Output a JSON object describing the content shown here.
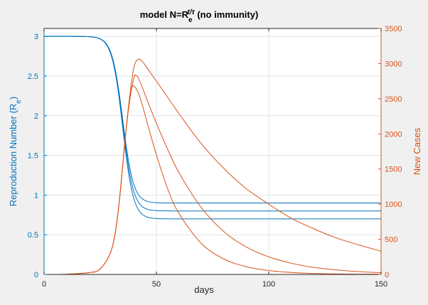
{
  "chart_data": {
    "type": "line",
    "title": "model N=R_e^{t/τ} (no immunity)",
    "title_parts": {
      "prefix": "model N=R",
      "sub": "e",
      "sup": "t/τ",
      "suffix": " (no immunity)"
    },
    "xlabel": "days",
    "ylabel_left": "Reproduction Number (R",
    "ylabel_left_sub": "e",
    "ylabel_left_close": ")",
    "ylabel_right": "New Cases",
    "xlim": [
      0,
      150
    ],
    "ylim_left": [
      0,
      3.1
    ],
    "ylim_right": [
      0,
      3500
    ],
    "xticks": [
      "0",
      "50",
      "100",
      "150"
    ],
    "yticks_left": [
      "0",
      "0.5",
      "1",
      "1.5",
      "2",
      "2.5",
      "3"
    ],
    "yticks_right": [
      "0",
      "500",
      "1000",
      "1500",
      "2000",
      "2500",
      "3000",
      "3500"
    ],
    "grid": true,
    "colors": {
      "left": "#0072bd",
      "right": "#d95319",
      "grid": "#dfe3e8"
    },
    "reproduction_series": [
      {
        "R_start": 3.0,
        "R_end": 0.9,
        "midpoint_day": 35,
        "steepness": 0.42
      },
      {
        "R_start": 3.0,
        "R_end": 0.8,
        "midpoint_day": 35,
        "steepness": 0.42
      },
      {
        "R_start": 3.0,
        "R_end": 0.7,
        "midpoint_day": 35,
        "steepness": 0.42
      }
    ],
    "cases_series": [
      {
        "x": [
          0,
          10,
          20,
          25,
          30,
          33,
          36,
          38,
          40,
          42,
          44,
          46,
          50,
          55,
          60,
          70,
          80,
          90,
          100,
          110,
          120,
          130,
          140,
          150
        ],
        "y": [
          0,
          3,
          25,
          80,
          350,
          900,
          1900,
          2500,
          2950,
          3060,
          3020,
          2930,
          2750,
          2520,
          2290,
          1860,
          1510,
          1220,
          1000,
          800,
          650,
          520,
          420,
          330
        ]
      },
      {
        "x": [
          0,
          10,
          20,
          25,
          30,
          33,
          36,
          38,
          40,
          41,
          42,
          44,
          46,
          50,
          55,
          60,
          70,
          80,
          90,
          100,
          110,
          120,
          130,
          140,
          150
        ],
        "y": [
          0,
          3,
          25,
          80,
          350,
          900,
          1900,
          2450,
          2800,
          2830,
          2790,
          2640,
          2470,
          2150,
          1780,
          1450,
          950,
          610,
          390,
          250,
          160,
          100,
          65,
          40,
          25
        ]
      },
      {
        "x": [
          0,
          10,
          20,
          25,
          30,
          33,
          36,
          38,
          39,
          40,
          42,
          44,
          46,
          50,
          55,
          60,
          70,
          80,
          90,
          100,
          110,
          120,
          130,
          140,
          150
        ],
        "y": [
          0,
          3,
          25,
          80,
          350,
          900,
          1900,
          2500,
          2650,
          2680,
          2580,
          2380,
          2150,
          1700,
          1220,
          870,
          440,
          220,
          110,
          55,
          28,
          14,
          7,
          4,
          2
        ]
      }
    ]
  }
}
